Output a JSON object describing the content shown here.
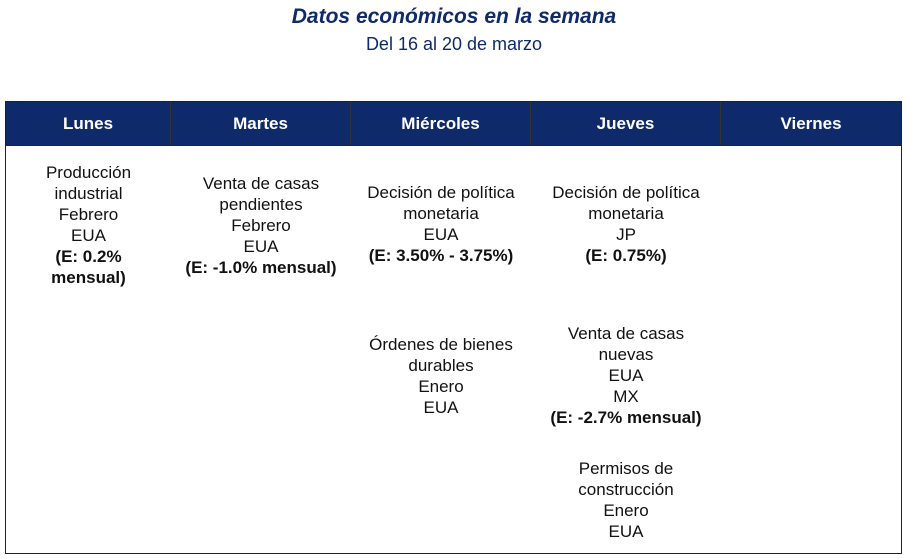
{
  "header": {
    "title": "Datos económicos en la semana",
    "subtitle": "Del 16 al 20 de marzo"
  },
  "table": {
    "columns": [
      "Lunes",
      "Martes",
      "Miércoles",
      "Jueves",
      "Viernes"
    ],
    "cells": [
      [
        {
          "lines": [
            "Producción",
            "industrial",
            "Febrero",
            "EUA"
          ],
          "estimate": "(E: 0.2% mensual)"
        }
      ],
      [
        {
          "lines": [
            "Venta de casas",
            "pendientes",
            "Febrero",
            "EUA"
          ],
          "estimate": "(E: -1.0% mensual)"
        }
      ],
      [
        {
          "lines": [
            "Decisión de política",
            "monetaria",
            "EUA"
          ],
          "estimate": "(E: 3.50% - 3.75%)"
        },
        {
          "lines": [
            "Órdenes de bienes",
            "durables",
            "Enero",
            "EUA"
          ]
        }
      ],
      [
        {
          "lines": [
            "Decisión de política",
            "monetaria",
            "JP"
          ],
          "estimate": "(E: 0.75%)"
        },
        {
          "lines": [
            "Venta de casas",
            "nuevas",
            "EUA",
            "MX"
          ],
          "estimate": "(E: -2.7% mensual)"
        },
        {
          "lines": [
            "Permisos de",
            "construcción",
            "Enero",
            "EUA"
          ]
        }
      ],
      []
    ]
  }
}
